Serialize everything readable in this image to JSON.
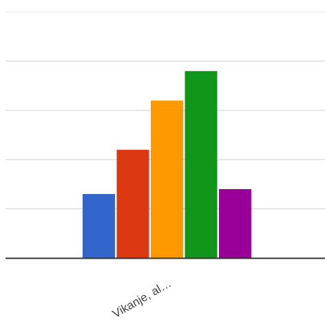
{
  "chart_data": {
    "type": "bar",
    "categories": [
      "Vikanje, al…"
    ],
    "series": [
      {
        "values": [
          1.3
        ],
        "color": "#3366cc"
      },
      {
        "values": [
          2.2
        ],
        "color": "#dc3912"
      },
      {
        "values": [
          3.2
        ],
        "color": "#ff9900"
      },
      {
        "values": [
          3.8
        ],
        "color": "#109618"
      },
      {
        "values": [
          1.4
        ],
        "color": "#990099"
      }
    ],
    "ylim": [
      0,
      5
    ],
    "grid": true,
    "title": "",
    "xlabel": "",
    "ylabel": ""
  }
}
